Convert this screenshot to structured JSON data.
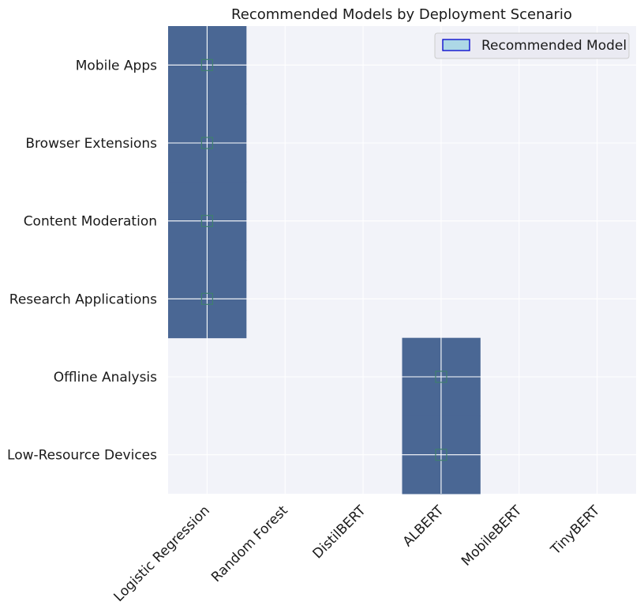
{
  "chart_data": {
    "type": "heatmap",
    "title": "Recommended Models by Deployment Scenario",
    "xlabel": "",
    "ylabel": "",
    "x_categories": [
      "Logistic Regression",
      "Random Forest",
      "DistilBERT",
      "ALBERT",
      "MobileBERT",
      "TinyBERT"
    ],
    "y_categories": [
      "Mobile Apps",
      "Browser Extensions",
      "Content Moderation",
      "Research Applications",
      "Offline Analysis",
      "Low-Resource Devices"
    ],
    "matrix": [
      [
        1,
        0,
        0,
        0,
        0,
        0
      ],
      [
        1,
        0,
        0,
        0,
        0,
        0
      ],
      [
        1,
        0,
        0,
        0,
        0,
        0
      ],
      [
        1,
        0,
        0,
        0,
        0,
        0
      ],
      [
        0,
        0,
        0,
        1,
        0,
        0
      ],
      [
        0,
        0,
        0,
        1,
        0,
        0
      ]
    ],
    "legend": {
      "label": "Recommended Model",
      "location": "upper right"
    },
    "grid": true,
    "colors": {
      "recommended": "#4a6794",
      "background": "#f2f3f9",
      "grid": "#ffffff",
      "marker": "#3f7f6f",
      "legend_patch_fill": "#add8e6",
      "legend_patch_edge": "#0000cd"
    }
  }
}
